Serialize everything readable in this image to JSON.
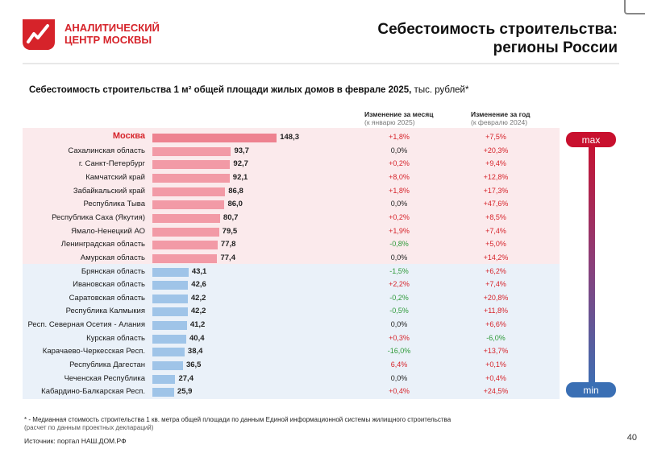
{
  "logo": {
    "line1": "АНАЛИТИЧЕСКИЙ",
    "line2": "ЦЕНТР МОСКВЫ",
    "color": "#d6232a"
  },
  "title": {
    "line1": "Себестоимость строительства:",
    "line2": "регионы России"
  },
  "subtitle": {
    "bold": "Себестоимость строительства 1 м² общей площади жилых домов в феврале 2025,",
    "unit": " тыс. рублей*"
  },
  "columns": {
    "month": {
      "label": "Изменение за месяц",
      "sub": "(к январю 2025)"
    },
    "year": {
      "label": "Изменение за год",
      "sub": "(к февралю 2024)"
    }
  },
  "scale": {
    "max": "max",
    "min": "min"
  },
  "colors": {
    "top_bar": "#f29aa6",
    "top_bar_highlight": "#ee8290",
    "bottom_bar": "#9fc4e8",
    "positive": "#d6232a",
    "negative": "#2e9a3a",
    "top_band": "#fbeaec",
    "bottom_band": "#eaf1f9"
  },
  "chart_data": {
    "type": "bar",
    "orientation": "horizontal",
    "title": "Себестоимость строительства 1 м² общей площади жилых домов в феврале 2025, тыс. рублей*",
    "categories": [
      "Москва",
      "Сахалинская область",
      "г. Санкт-Петербург",
      "Камчатский край",
      "Забайкальский край",
      "Республика Тыва",
      "Республика Саха (Якутия)",
      "Ямало-Ненецкий АО",
      "Ленинградская область",
      "Амурская область",
      "Брянская область",
      "Ивановская область",
      "Саратовская область",
      "Республика Калмыкия",
      "Респ. Северная Осетия - Алания",
      "Курская область",
      "Карачаево-Черкесская Респ.",
      "Республика Дагестан",
      "Чеченская Республика",
      "Кабардино-Балкарская Респ."
    ],
    "values": [
      148.3,
      93.7,
      92.7,
      92.1,
      86.8,
      86.0,
      80.7,
      79.5,
      77.8,
      77.4,
      43.1,
      42.6,
      42.2,
      42.2,
      41.2,
      40.4,
      38.4,
      36.5,
      27.4,
      25.9
    ],
    "value_labels": [
      "148,3",
      "93,7",
      "92,7",
      "92,1",
      "86,8",
      "86,0",
      "80,7",
      "79,5",
      "77,8",
      "77,4",
      "43,1",
      "42,6",
      "42,2",
      "42,2",
      "41,2",
      "40,4",
      "38,4",
      "36,5",
      "27,4",
      "25,9"
    ],
    "groups": [
      "top",
      "top",
      "top",
      "top",
      "top",
      "top",
      "top",
      "top",
      "top",
      "top",
      "bottom",
      "bottom",
      "bottom",
      "bottom",
      "bottom",
      "bottom",
      "bottom",
      "bottom",
      "bottom",
      "bottom"
    ],
    "change_month": [
      "+1,8%",
      "0,0%",
      "+0,2%",
      "+8,0%",
      "+1,8%",
      "0,0%",
      "+0,2%",
      "+1,9%",
      "-0,8%",
      "0,0%",
      "-1,5%",
      "+2,2%",
      "-0,2%",
      "-0,5%",
      "0,0%",
      "+0,3%",
      "-16,0%",
      "6,4%",
      "0,0%",
      "+0,4%"
    ],
    "change_year": [
      "+7,5%",
      "+20,3%",
      "+9,4%",
      "+12,8%",
      "+17,3%",
      "+47,6%",
      "+8,5%",
      "+7,4%",
      "+5,0%",
      "+14,2%",
      "+6,2%",
      "+7,4%",
      "+20,8%",
      "+11,8%",
      "+6,6%",
      "-6,0%",
      "+13,7%",
      "+0,1%",
      "+0,4%",
      "+24,5%"
    ],
    "xlim": [
      0,
      150
    ]
  },
  "footnote": {
    "line1": "* - Медианная стоимость строительства 1 кв. метра общей площади по данным Единой информационной системы жилищного строительства",
    "line2": "(расчет по данным проектных деклараций)"
  },
  "source": "Источник: портал НАШ.ДОМ.РФ",
  "page_number": "40"
}
